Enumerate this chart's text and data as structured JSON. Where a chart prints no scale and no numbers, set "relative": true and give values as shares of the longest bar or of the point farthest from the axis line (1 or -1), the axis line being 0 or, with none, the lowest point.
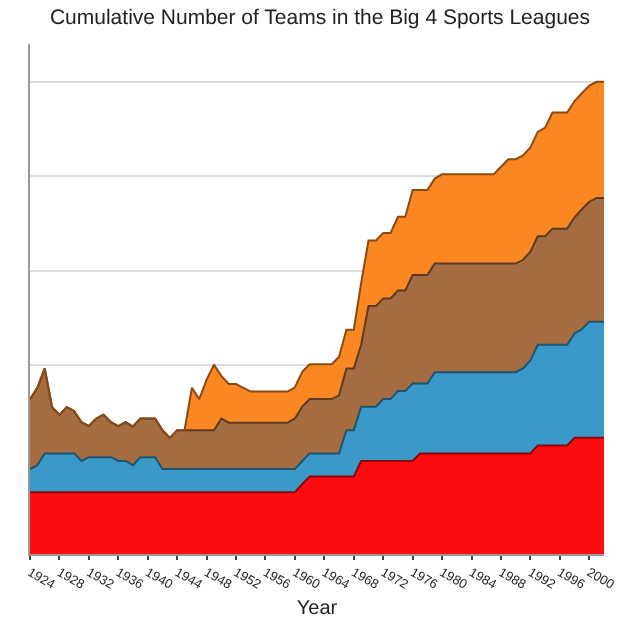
{
  "chart_data": {
    "type": "area",
    "title": "Cumulative Number of Teams in the Big 4 Sports Leagues",
    "xlabel": "Year",
    "relative": true,
    "stacked": true,
    "grid": "y",
    "x": [
      1924,
      1925,
      1926,
      1927,
      1928,
      1929,
      1930,
      1931,
      1932,
      1933,
      1934,
      1935,
      1936,
      1937,
      1938,
      1939,
      1940,
      1941,
      1942,
      1943,
      1944,
      1945,
      1946,
      1947,
      1948,
      1949,
      1950,
      1951,
      1952,
      1953,
      1954,
      1955,
      1956,
      1957,
      1958,
      1959,
      1960,
      1961,
      1962,
      1963,
      1964,
      1965,
      1966,
      1967,
      1968,
      1969,
      1970,
      1971,
      1972,
      1973,
      1974,
      1975,
      1976,
      1977,
      1978,
      1979,
      1980,
      1981,
      1982,
      1983,
      1984,
      1985,
      1986,
      1987,
      1988,
      1989,
      1990,
      1991,
      1992,
      1993,
      1994,
      1995,
      1996,
      1997,
      1998,
      1999,
      2000,
      2001,
      2002
    ],
    "xlim": [
      1924,
      2002
    ],
    "xticks": [
      1924,
      1928,
      1932,
      1936,
      1940,
      1944,
      1948,
      1952,
      1956,
      1960,
      1964,
      1968,
      1972,
      1976,
      1980,
      1984,
      1988,
      1992,
      1996,
      2000
    ],
    "series": [
      {
        "color": "#fc0d0f",
        "values": [
          0.131,
          0.131,
          0.131,
          0.131,
          0.131,
          0.131,
          0.131,
          0.131,
          0.131,
          0.131,
          0.131,
          0.131,
          0.131,
          0.131,
          0.131,
          0.131,
          0.131,
          0.131,
          0.131,
          0.131,
          0.131,
          0.131,
          0.131,
          0.131,
          0.131,
          0.131,
          0.131,
          0.131,
          0.131,
          0.131,
          0.131,
          0.131,
          0.131,
          0.131,
          0.131,
          0.131,
          0.131,
          0.148,
          0.164,
          0.164,
          0.164,
          0.164,
          0.164,
          0.164,
          0.164,
          0.197,
          0.197,
          0.197,
          0.197,
          0.197,
          0.197,
          0.197,
          0.197,
          0.213,
          0.213,
          0.213,
          0.213,
          0.213,
          0.213,
          0.213,
          0.213,
          0.213,
          0.213,
          0.213,
          0.213,
          0.213,
          0.213,
          0.213,
          0.213,
          0.23,
          0.23,
          0.23,
          0.23,
          0.23,
          0.246,
          0.246,
          0.246,
          0.246,
          0.246
        ]
      },
      {
        "color": "#3a99c8",
        "values": [
          0.049,
          0.057,
          0.082,
          0.082,
          0.082,
          0.082,
          0.082,
          0.066,
          0.074,
          0.074,
          0.074,
          0.074,
          0.066,
          0.066,
          0.057,
          0.074,
          0.074,
          0.074,
          0.049,
          0.049,
          0.049,
          0.049,
          0.049,
          0.049,
          0.049,
          0.049,
          0.049,
          0.049,
          0.049,
          0.049,
          0.049,
          0.049,
          0.049,
          0.049,
          0.049,
          0.049,
          0.049,
          0.049,
          0.049,
          0.049,
          0.049,
          0.049,
          0.049,
          0.098,
          0.098,
          0.115,
          0.115,
          0.115,
          0.131,
          0.131,
          0.148,
          0.148,
          0.164,
          0.148,
          0.148,
          0.172,
          0.172,
          0.172,
          0.172,
          0.172,
          0.172,
          0.172,
          0.172,
          0.172,
          0.172,
          0.172,
          0.172,
          0.18,
          0.197,
          0.213,
          0.213,
          0.213,
          0.213,
          0.213,
          0.221,
          0.23,
          0.246,
          0.246,
          0.246
        ]
      },
      {
        "color": "#a56c42",
        "values": [
          0.148,
          0.164,
          0.18,
          0.098,
          0.082,
          0.098,
          0.09,
          0.082,
          0.066,
          0.082,
          0.09,
          0.074,
          0.074,
          0.082,
          0.082,
          0.082,
          0.082,
          0.082,
          0.082,
          0.066,
          0.082,
          0.082,
          0.082,
          0.082,
          0.082,
          0.082,
          0.107,
          0.098,
          0.098,
          0.098,
          0.098,
          0.098,
          0.098,
          0.098,
          0.098,
          0.098,
          0.107,
          0.115,
          0.115,
          0.115,
          0.115,
          0.115,
          0.123,
          0.131,
          0.131,
          0.131,
          0.213,
          0.213,
          0.213,
          0.213,
          0.213,
          0.213,
          0.23,
          0.23,
          0.23,
          0.23,
          0.23,
          0.23,
          0.23,
          0.23,
          0.23,
          0.23,
          0.23,
          0.23,
          0.23,
          0.23,
          0.23,
          0.23,
          0.23,
          0.23,
          0.23,
          0.246,
          0.246,
          0.246,
          0.246,
          0.254,
          0.254,
          0.262,
          0.262
        ]
      },
      {
        "color": "#fb8722",
        "values": [
          0,
          0,
          0,
          0,
          0,
          0,
          0,
          0,
          0,
          0,
          0,
          0,
          0,
          0,
          0,
          0,
          0,
          0,
          0,
          0,
          0,
          0,
          0.09,
          0.066,
          0.107,
          0.139,
          0.09,
          0.082,
          0.082,
          0.074,
          0.066,
          0.066,
          0.066,
          0.066,
          0.066,
          0.066,
          0.066,
          0.074,
          0.074,
          0.074,
          0.074,
          0.074,
          0.082,
          0.082,
          0.082,
          0.131,
          0.139,
          0.139,
          0.139,
          0.139,
          0.156,
          0.156,
          0.18,
          0.18,
          0.18,
          0.18,
          0.189,
          0.189,
          0.189,
          0.189,
          0.189,
          0.189,
          0.189,
          0.189,
          0.205,
          0.221,
          0.221,
          0.221,
          0.221,
          0.221,
          0.23,
          0.246,
          0.246,
          0.246,
          0.246,
          0.246,
          0.246,
          0.246,
          0.246
        ]
      }
    ]
  }
}
